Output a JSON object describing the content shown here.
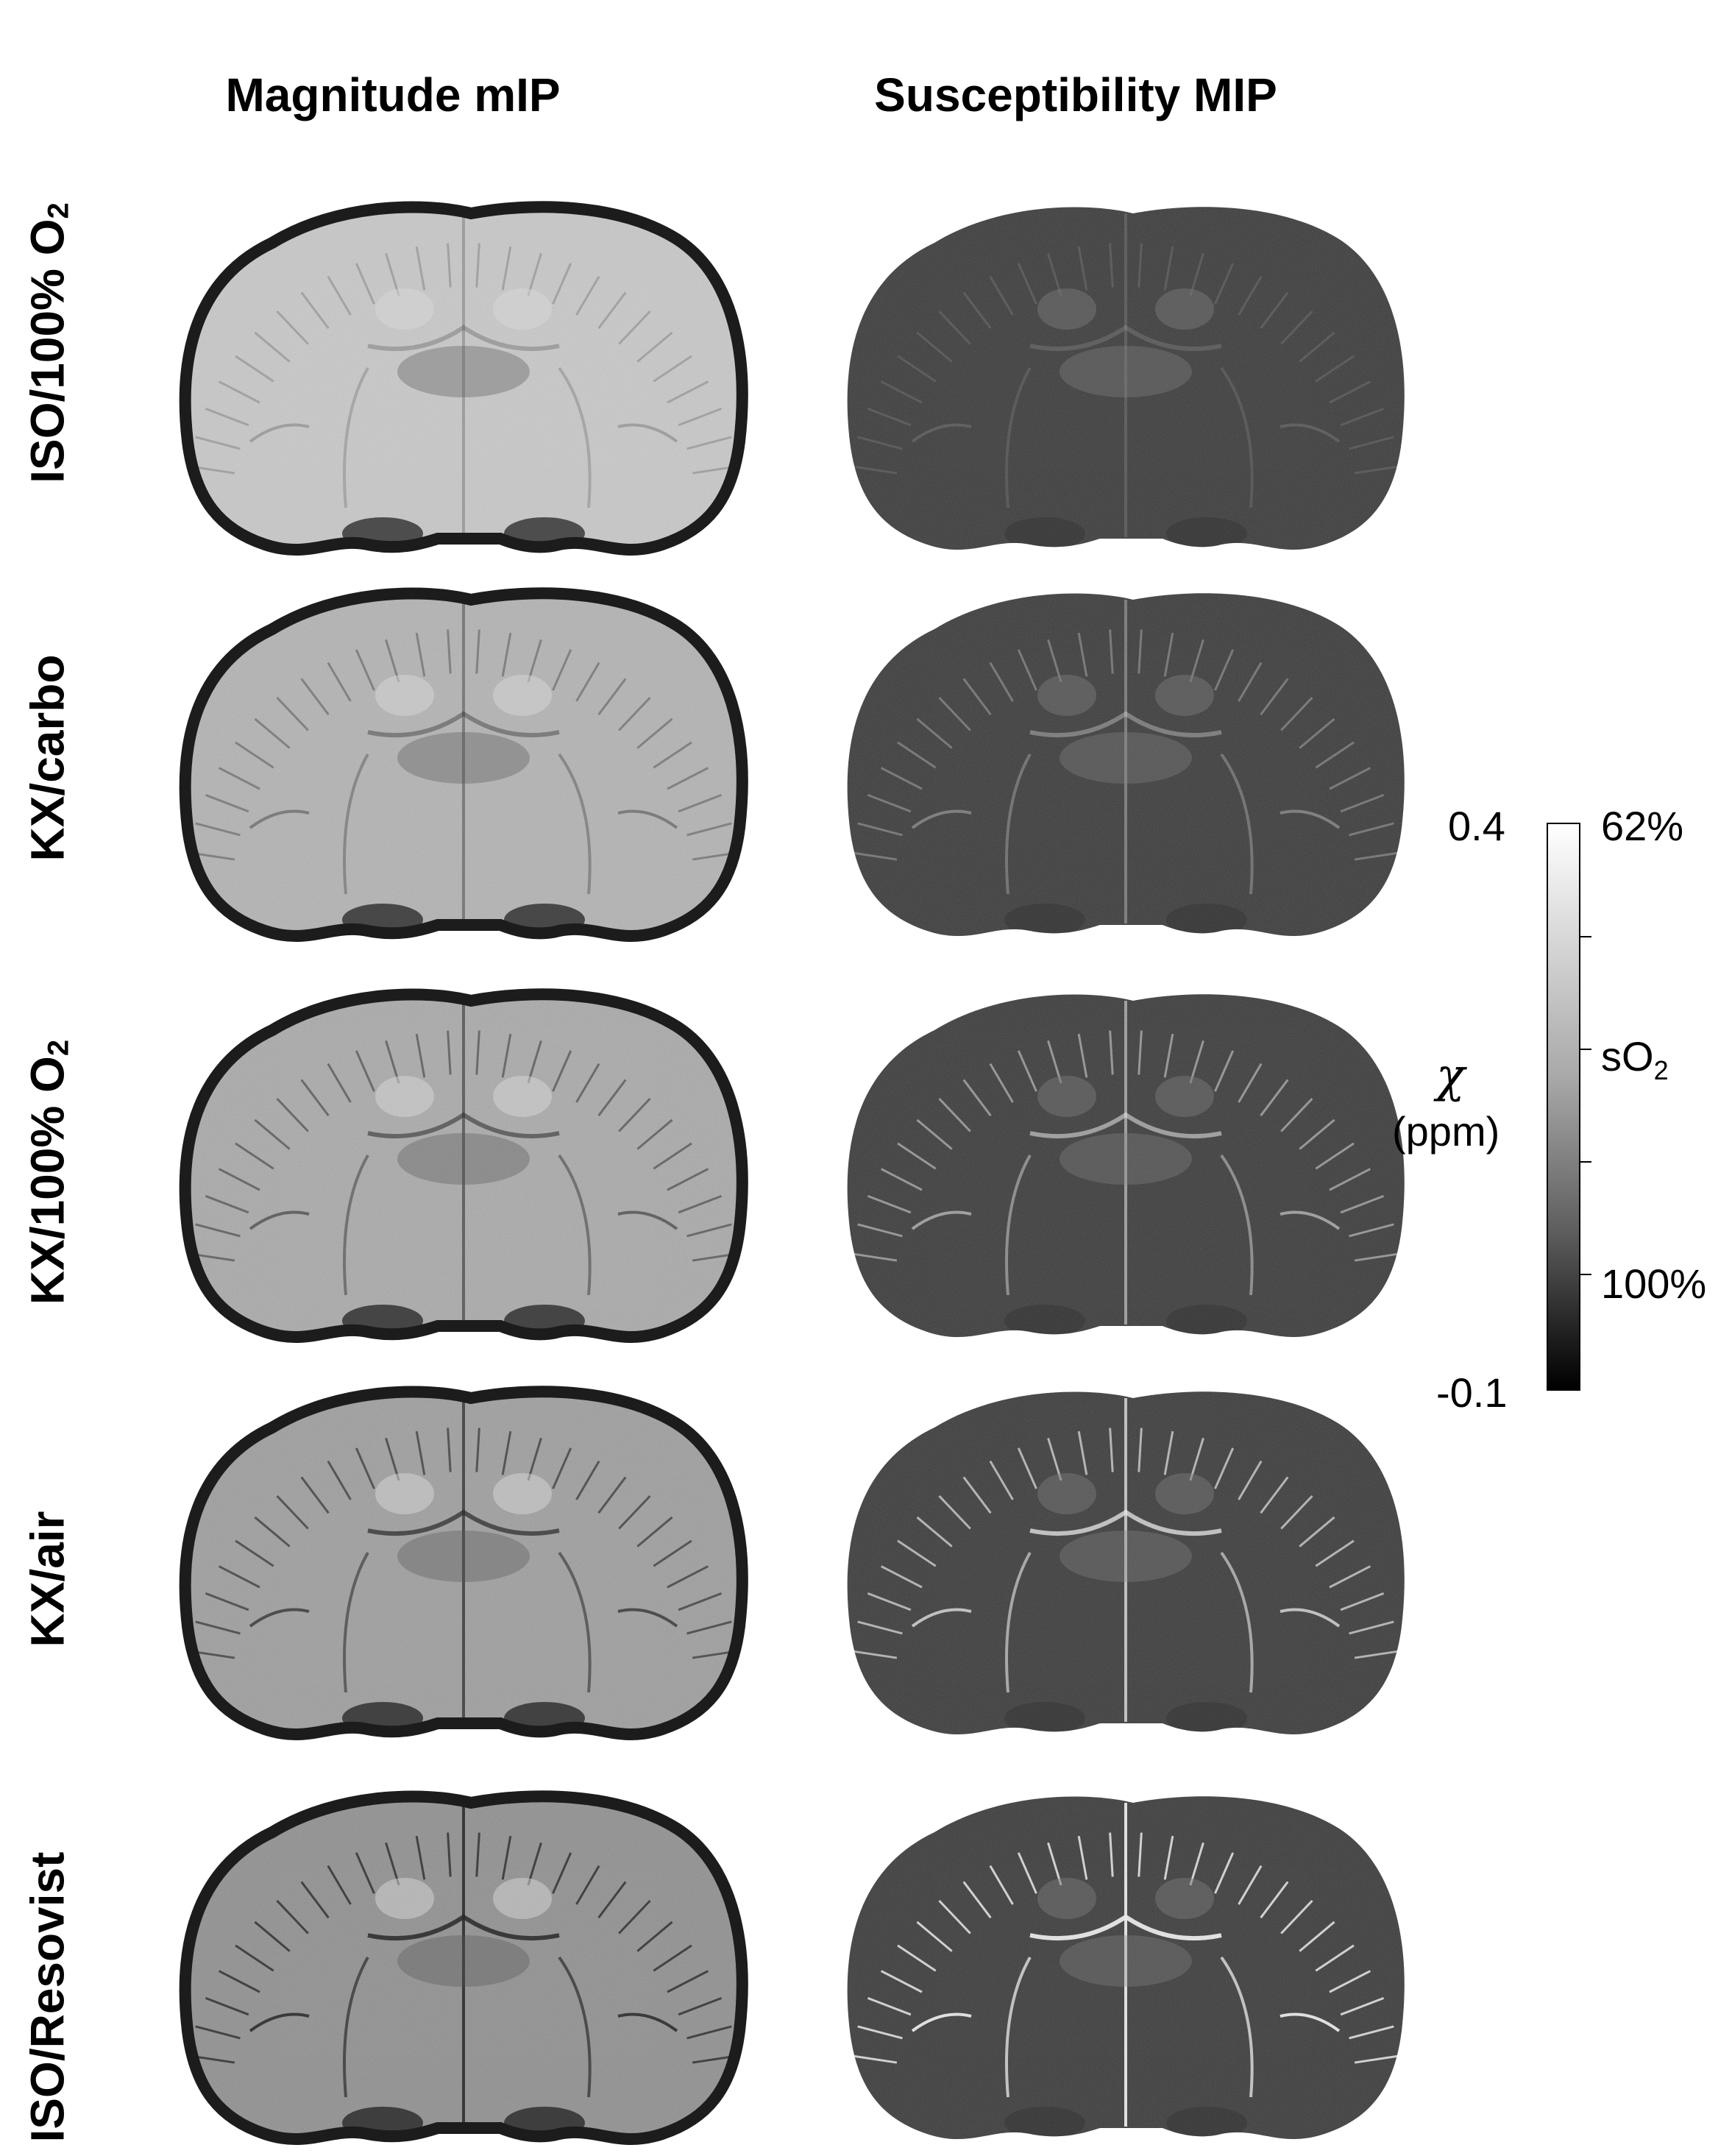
{
  "columns": [
    "Magnitude mIP",
    "Susceptibility MIP"
  ],
  "rows": [
    {
      "main": "ISO/100% O",
      "sub": "2"
    },
    {
      "main": "KX/carbo",
      "sub": ""
    },
    {
      "main": "KX/100% O",
      "sub": "2"
    },
    {
      "main": "KX/air",
      "sub": ""
    },
    {
      "main": "ISO/Resovist",
      "sub": ""
    }
  ],
  "colorbar": {
    "left_max": "0.4",
    "left_min": "-0.1",
    "symbol": "χ",
    "unit": "(ppm)",
    "right_top": "62%",
    "right_mid_main": "sO",
    "right_mid_sub": "2",
    "right_bottom": "100%",
    "colors": [
      "#ffffff",
      "#000000"
    ]
  }
}
